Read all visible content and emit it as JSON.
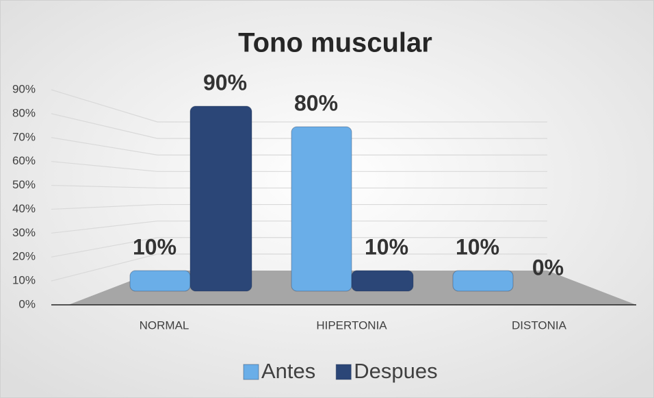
{
  "chart_data": {
    "type": "bar3d",
    "title": "Tono muscular",
    "categories": [
      "NORMAL",
      "HIPERTONIA",
      "DISTONIA"
    ],
    "series": [
      {
        "name": "Antes",
        "color": "#6aaee8",
        "values": [
          10,
          80,
          10
        ],
        "value_labels": [
          "10%",
          "80%",
          "10%"
        ]
      },
      {
        "name": "Despues",
        "color": "#2b4677",
        "values": [
          90,
          10,
          0
        ],
        "value_labels": [
          "90%",
          "10%",
          "0%"
        ]
      }
    ],
    "ylim": [
      0,
      90
    ],
    "yticks": [
      {
        "value": 0,
        "label": "0%"
      },
      {
        "value": 10,
        "label": "10%"
      },
      {
        "value": 20,
        "label": "20%"
      },
      {
        "value": 30,
        "label": "30%"
      },
      {
        "value": 40,
        "label": "40%"
      },
      {
        "value": 50,
        "label": "50%"
      },
      {
        "value": 60,
        "label": "60%"
      },
      {
        "value": 70,
        "label": "70%"
      },
      {
        "value": 80,
        "label": "80%"
      },
      {
        "value": 90,
        "label": "90%"
      }
    ],
    "grid": true,
    "legend": "bottom"
  }
}
